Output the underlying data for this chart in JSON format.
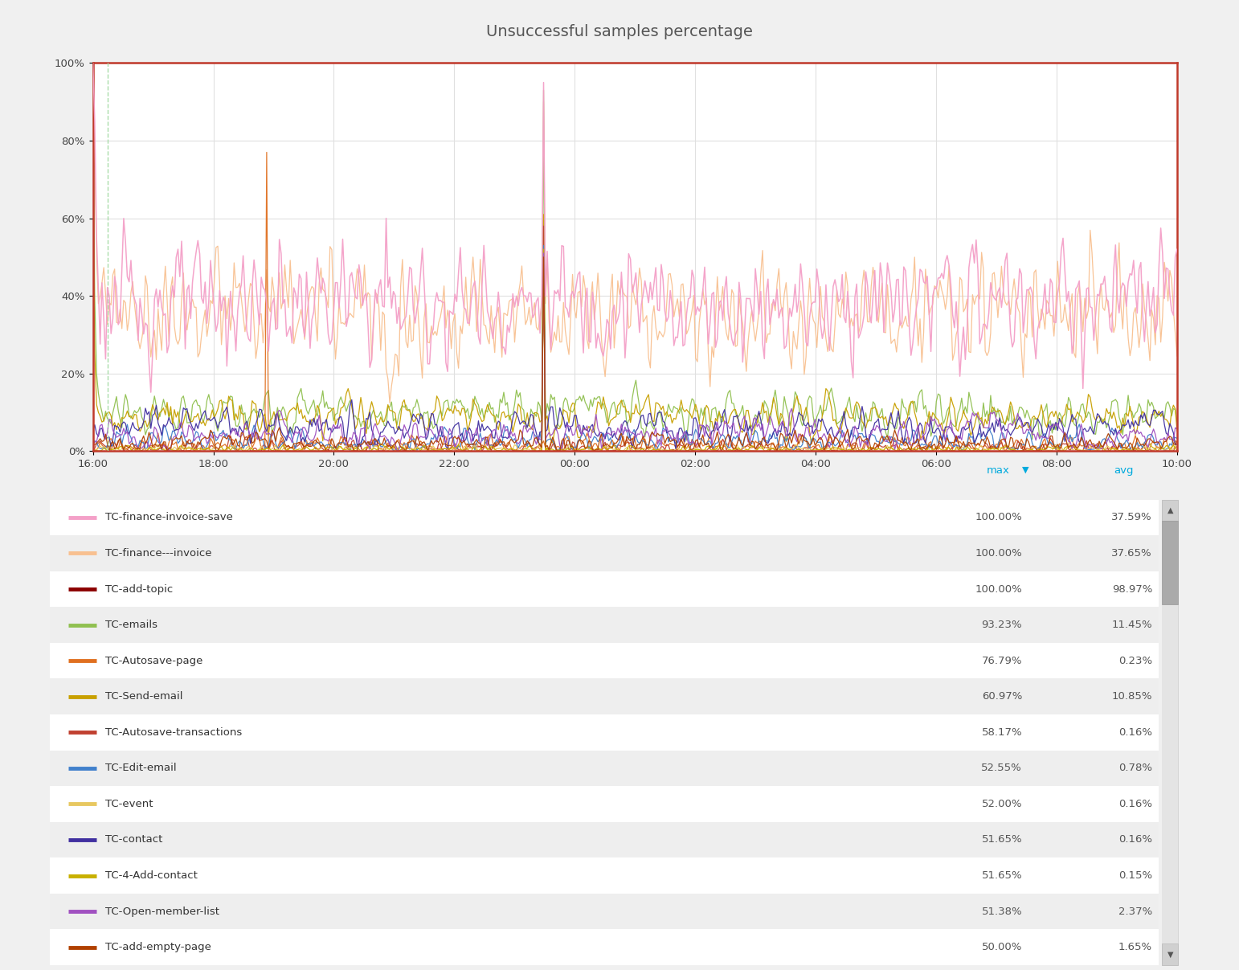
{
  "title": "Unsuccessful samples percentage",
  "title_fontsize": 14,
  "title_color": "#555555",
  "background_color": "#f0f0f0",
  "plot_bg_color": "#ffffff",
  "x_ticks": [
    "16:00",
    "18:00",
    "20:00",
    "22:00",
    "00:00",
    "02:00",
    "04:00",
    "06:00",
    "08:00",
    "10:00"
  ],
  "y_ticks": [
    "0%",
    "20%",
    "40%",
    "60%",
    "80%",
    "100%"
  ],
  "y_values": [
    0,
    20,
    40,
    60,
    80,
    100
  ],
  "border_color": "#c0392b",
  "dashed_line_color": "#aaddaa",
  "legend_entries": [
    {
      "label": "TC-finance-invoice-save",
      "color": "#f4a0c8",
      "max": "100.00%",
      "avg": "37.59%",
      "dash": false
    },
    {
      "label": "TC-finance---invoice",
      "color": "#f8c090",
      "max": "100.00%",
      "avg": "37.65%",
      "dash": false
    },
    {
      "label": "TC-add-topic",
      "color": "#8b0000",
      "max": "100.00%",
      "avg": "98.97%",
      "dash": false
    },
    {
      "label": "TC-emails",
      "color": "#90c050",
      "max": "93.23%",
      "avg": "11.45%",
      "dash": false
    },
    {
      "label": "TC-Autosave-page",
      "color": "#e07020",
      "max": "76.79%",
      "avg": "0.23%",
      "dash": false
    },
    {
      "label": "TC-Send-email",
      "color": "#c8a000",
      "max": "60.97%",
      "avg": "10.85%",
      "dash": false
    },
    {
      "label": "TC-Autosave-transactions",
      "color": "#c04030",
      "max": "58.17%",
      "avg": "0.16%",
      "dash": false
    },
    {
      "label": "TC-Edit-email",
      "color": "#4080cc",
      "max": "52.55%",
      "avg": "0.78%",
      "dash": false
    },
    {
      "label": "TC-event",
      "color": "#e8c860",
      "max": "52.00%",
      "avg": "0.16%",
      "dash": false
    },
    {
      "label": "TC-contact",
      "color": "#4030a0",
      "max": "51.65%",
      "avg": "0.16%",
      "dash": false
    },
    {
      "label": "TC-4-Add-contact",
      "color": "#c8b000",
      "max": "51.65%",
      "avg": "0.15%",
      "dash": false
    },
    {
      "label": "TC-Open-member-list",
      "color": "#a050c0",
      "max": "51.38%",
      "avg": "2.37%",
      "dash": false
    },
    {
      "label": "TC-add-empty-page",
      "color": "#b04000",
      "max": "50.00%",
      "avg": "1.65%",
      "dash": false
    }
  ]
}
